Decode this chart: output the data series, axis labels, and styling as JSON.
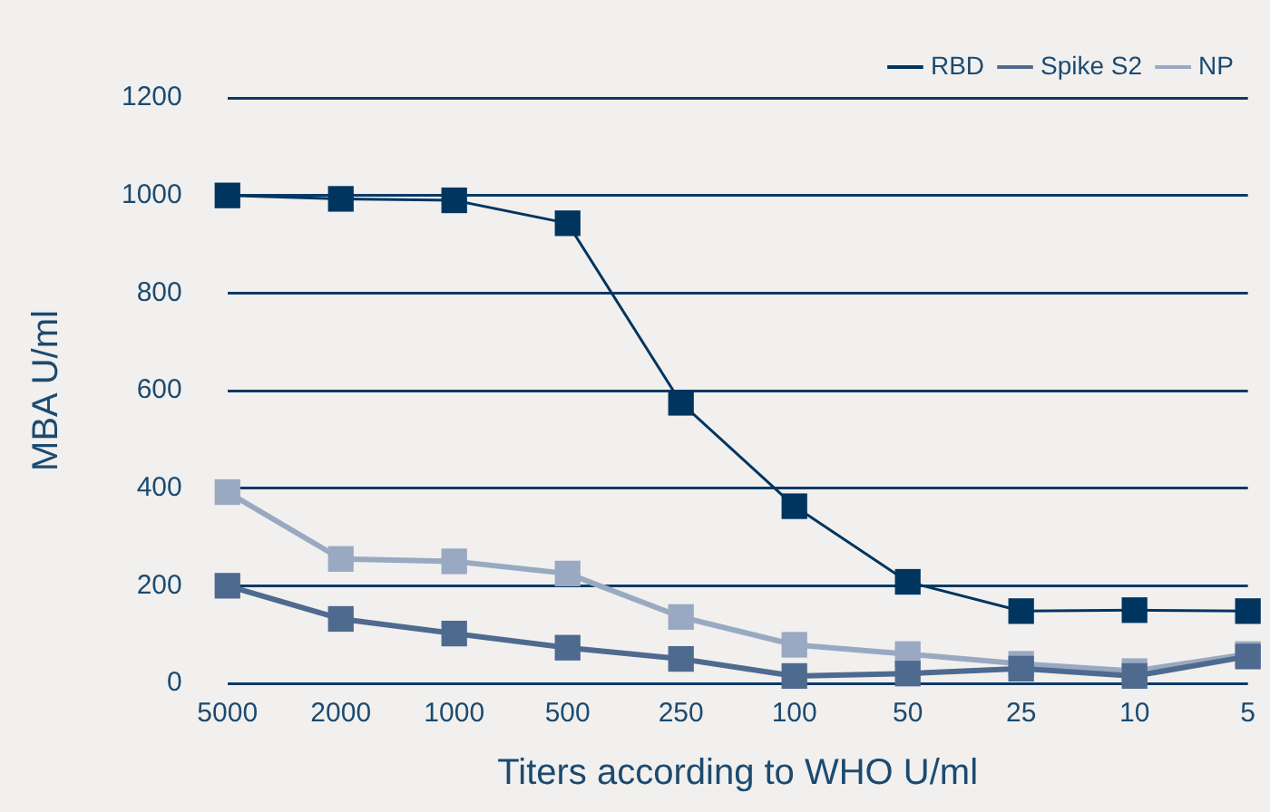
{
  "chart_data": {
    "type": "line",
    "xlabel": "Titers according to WHO U/ml",
    "ylabel": "MBA U/ml",
    "categories": [
      "5000",
      "2000",
      "1000",
      "500",
      "250",
      "100",
      "50",
      "25",
      "10",
      "5"
    ],
    "series": [
      {
        "name": "RBD",
        "color": "#003560",
        "values": [
          1000,
          993,
          990,
          943,
          575,
          363,
          208,
          148,
          150,
          148
        ]
      },
      {
        "name": "Spike S2",
        "color": "#4f6a8f",
        "values": [
          200,
          132,
          102,
          73,
          50,
          15,
          20,
          30,
          15,
          55
        ]
      },
      {
        "name": "NP",
        "color": "#9aa9c2",
        "values": [
          392,
          255,
          250,
          225,
          136,
          79,
          60,
          40,
          25,
          60
        ]
      }
    ],
    "ylim": [
      0,
      1200
    ],
    "yticks": [
      0,
      200,
      400,
      600,
      800,
      1000,
      1200
    ],
    "grid": "y",
    "legend": "top right",
    "marker": "square",
    "line_style": "solid"
  }
}
